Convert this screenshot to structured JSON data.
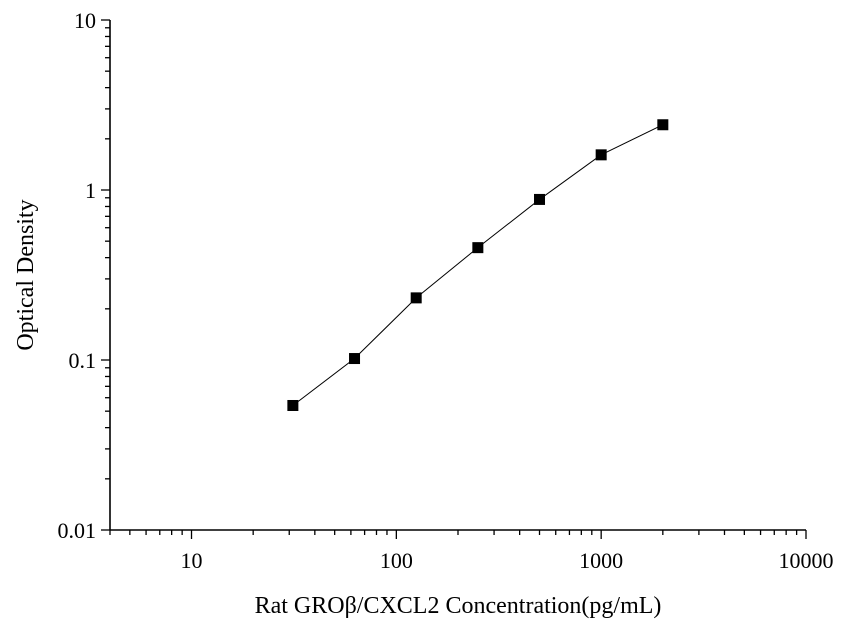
{
  "chart_data": {
    "type": "scatter",
    "xlabel": "Rat GROβ/CXCL2  Concentration(pg/mL)",
    "ylabel": "Optical Density",
    "x_scale": "log",
    "y_scale": "log",
    "xlim": [
      4,
      10000
    ],
    "ylim": [
      0.01,
      10
    ],
    "x_ticks": [
      {
        "value": 10,
        "label": "10"
      },
      {
        "value": 100,
        "label": "100"
      },
      {
        "value": 1000,
        "label": "1000"
      },
      {
        "value": 10000,
        "label": "10000"
      }
    ],
    "y_ticks": [
      {
        "value": 0.01,
        "label": "0.01"
      },
      {
        "value": 0.1,
        "label": "0.1"
      },
      {
        "value": 1,
        "label": "1"
      },
      {
        "value": 10,
        "label": "10"
      }
    ],
    "grid": false,
    "marker": "square",
    "line": "connected",
    "color": "#000000",
    "series": [
      {
        "x": [
          31.25,
          62.5,
          125,
          250,
          500,
          1000,
          2000
        ],
        "y": [
          0.054,
          0.102,
          0.232,
          0.458,
          0.88,
          1.61,
          2.42
        ]
      }
    ]
  }
}
